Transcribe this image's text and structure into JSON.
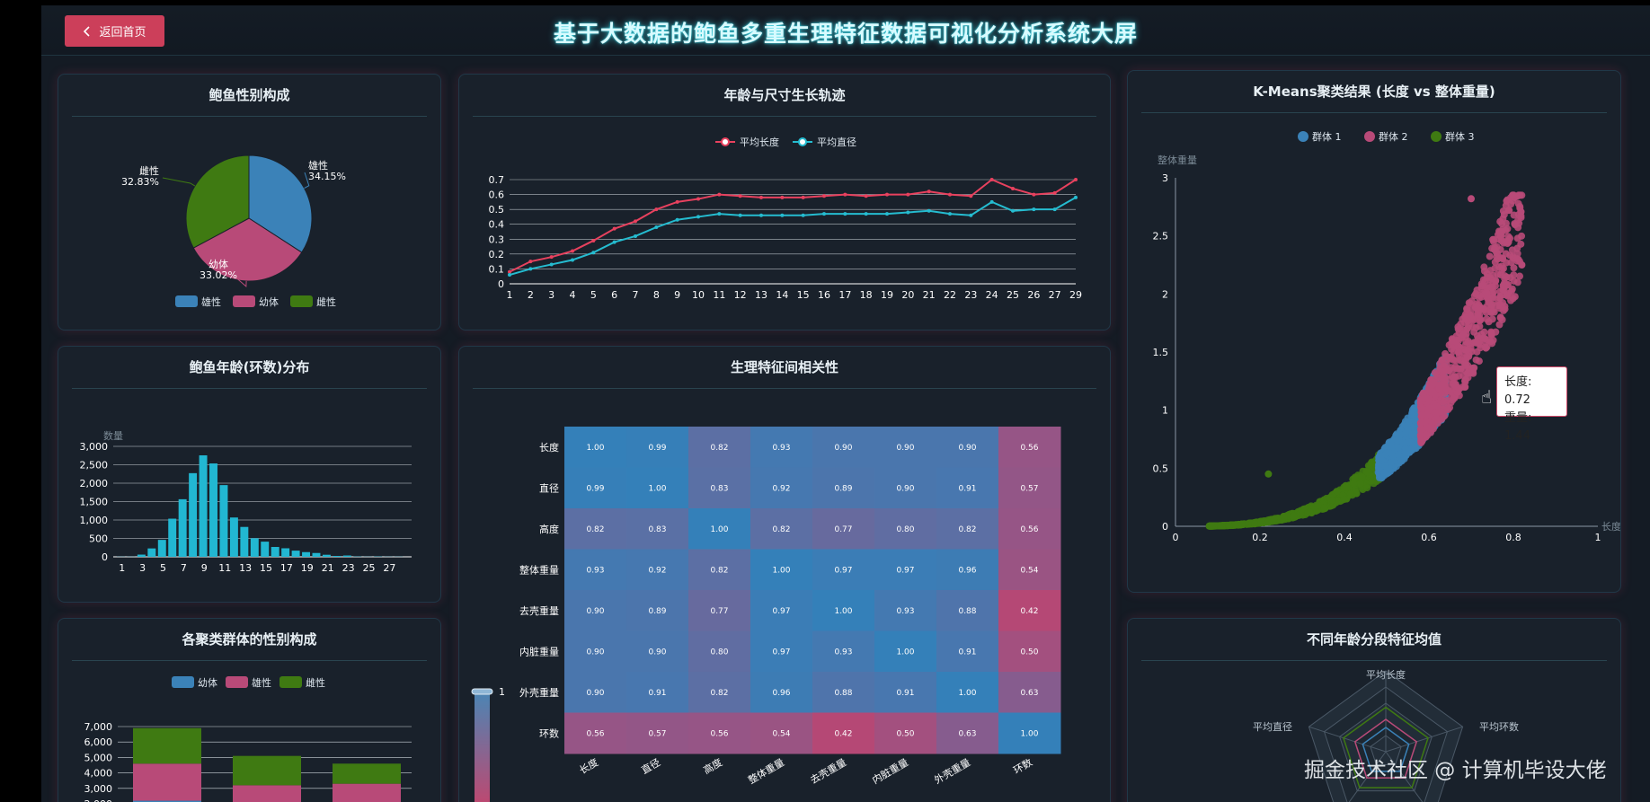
{
  "header": {
    "back_label": "返回首页",
    "title": "基于大数据的鲍鱼多重生理特征数据可视化分析系统大屏"
  },
  "colors": {
    "blue": "#3b82b8",
    "pink": "#b84a78",
    "green": "#3f7a12",
    "red": "#e8415e",
    "cyan": "#25bcd0",
    "bar": "#22b7d2"
  },
  "watermark": "掘金技术社区 @ 计算机毕设大佬",
  "sex_pie": {
    "title": "鲍鱼性别构成",
    "chart_data": {
      "type": "pie",
      "slices": [
        {
          "name": "雄性",
          "value": 34.15,
          "label": "34.15%"
        },
        {
          "name": "幼体",
          "value": 33.02,
          "label": "33.02%"
        },
        {
          "name": "雌性",
          "value": 32.83,
          "label": "32.83%"
        }
      ],
      "legend": [
        "雄性",
        "幼体",
        "雌性"
      ]
    }
  },
  "growth": {
    "title": "年龄与尺寸生长轨迹",
    "chart_data": {
      "type": "line",
      "x": [
        1,
        2,
        3,
        4,
        5,
        6,
        7,
        8,
        9,
        10,
        11,
        12,
        13,
        14,
        15,
        16,
        17,
        18,
        19,
        20,
        21,
        22,
        23,
        24,
        25,
        26,
        27,
        29
      ],
      "yticks": [
        "0",
        "0.1",
        "0.2",
        "0.3",
        "0.4",
        "0.5",
        "0.6",
        "0.7"
      ],
      "ylim": [
        0,
        0.7
      ],
      "series": [
        {
          "name": "平均长度",
          "values": [
            0.08,
            0.15,
            0.18,
            0.22,
            0.29,
            0.37,
            0.42,
            0.5,
            0.55,
            0.57,
            0.6,
            0.59,
            0.58,
            0.58,
            0.58,
            0.59,
            0.6,
            0.59,
            0.6,
            0.6,
            0.62,
            0.6,
            0.59,
            0.7,
            0.64,
            0.6,
            0.61,
            0.7
          ]
        },
        {
          "name": "平均直径",
          "values": [
            0.06,
            0.1,
            0.13,
            0.16,
            0.21,
            0.28,
            0.32,
            0.38,
            0.43,
            0.45,
            0.47,
            0.46,
            0.46,
            0.46,
            0.46,
            0.47,
            0.47,
            0.47,
            0.47,
            0.48,
            0.49,
            0.47,
            0.46,
            0.55,
            0.49,
            0.5,
            0.5,
            0.58
          ]
        }
      ]
    }
  },
  "kmeans": {
    "title": "K-Means聚类结果 (长度 vs 整体重量)",
    "chart_data": {
      "type": "scatter",
      "ylabel": "整体重量",
      "xlabel": "长度",
      "xlim": [
        0,
        1
      ],
      "ylim": [
        0,
        3
      ],
      "xticks": [
        "0",
        "0.2",
        "0.4",
        "0.6",
        "0.8",
        "1"
      ],
      "yticks": [
        "0",
        "0.5",
        "1",
        "1.5",
        "2",
        "2.5",
        "3"
      ],
      "series": [
        {
          "name": "群体 1",
          "x_range": [
            0.48,
            0.64
          ]
        },
        {
          "name": "群体 2",
          "x_range": [
            0.58,
            0.82
          ]
        },
        {
          "name": "群体 3",
          "x_range": [
            0.08,
            0.49
          ]
        }
      ],
      "tooltip": {
        "length_label": "长度: 0.72",
        "weight_label": "重量: 1.44"
      }
    }
  },
  "age_hist": {
    "title": "鲍鱼年龄(环数)分布",
    "chart_data": {
      "type": "bar",
      "ylabel": "数量",
      "categories": [
        1,
        2,
        3,
        4,
        5,
        6,
        7,
        8,
        9,
        10,
        11,
        12,
        13,
        14,
        15,
        16,
        17,
        18,
        19,
        20,
        21,
        22,
        23,
        24,
        25,
        26,
        27,
        29
      ],
      "values": [
        1,
        1,
        15,
        57,
        115,
        259,
        391,
        568,
        689,
        634,
        487,
        267,
        203,
        126,
        103,
        67,
        58,
        42,
        32,
        26,
        14,
        6,
        9,
        2,
        1,
        2,
        1,
        1
      ],
      "xticks": [
        "1",
        "3",
        "5",
        "7",
        "9",
        "11",
        "13",
        "15",
        "17",
        "19",
        "21",
        "23",
        "25",
        "27"
      ],
      "yticks": [
        "0",
        "500",
        "1,000",
        "1,500",
        "2,000",
        "2,500",
        "3,000"
      ],
      "ylim": [
        0,
        3000
      ],
      "scale_note": "values shown ×4 on axis"
    }
  },
  "corr": {
    "title": "生理特征间相关性",
    "chart_data": {
      "type": "heatmap",
      "labels": [
        "长度",
        "直径",
        "高度",
        "整体重量",
        "去壳重量",
        "内脏重量",
        "外壳重量",
        "环数"
      ],
      "matrix": [
        [
          "1.00",
          "0.99",
          "0.82",
          "0.93",
          "0.90",
          "0.90",
          "0.90",
          "0.56"
        ],
        [
          "0.99",
          "1.00",
          "0.83",
          "0.92",
          "0.89",
          "0.90",
          "0.91",
          "0.57"
        ],
        [
          "0.82",
          "0.83",
          "1.00",
          "0.82",
          "0.77",
          "0.80",
          "0.82",
          "0.56"
        ],
        [
          "0.93",
          "0.92",
          "0.82",
          "1.00",
          "0.97",
          "0.97",
          "0.96",
          "0.54"
        ],
        [
          "0.90",
          "0.89",
          "0.77",
          "0.97",
          "1.00",
          "0.93",
          "0.88",
          "0.42"
        ],
        [
          "0.90",
          "0.90",
          "0.80",
          "0.97",
          "0.93",
          "1.00",
          "0.91",
          "0.50"
        ],
        [
          "0.90",
          "0.91",
          "0.82",
          "0.96",
          "0.88",
          "0.91",
          "1.00",
          "0.63"
        ],
        [
          "0.56",
          "0.57",
          "0.56",
          "0.54",
          "0.42",
          "0.50",
          "0.63",
          "1.00"
        ]
      ],
      "visual_map": {
        "max_label": "1",
        "min_label": "0"
      }
    }
  },
  "cluster_sex": {
    "title": "各聚类群体的性别构成",
    "chart_data": {
      "type": "bar",
      "legend": [
        "幼体",
        "雄性",
        "雌性"
      ],
      "yticks": [
        "2,000",
        "3,000",
        "4,000",
        "5,000",
        "6,000",
        "7,000"
      ],
      "stacks": [
        {
          "幼体": 2200,
          "雄性": 2400,
          "雌性": 2300
        },
        {
          "幼体": 1000,
          "雄性": 2200,
          "雌性": 1900
        },
        {
          "幼体": 1900,
          "雄性": 1400,
          "雌性": 1300
        }
      ]
    }
  },
  "radar": {
    "title": "不同年龄分段特征均值",
    "chart_data": {
      "type": "radar",
      "indicators": [
        "平均长度",
        "平均环数",
        "平均直径"
      ]
    }
  }
}
